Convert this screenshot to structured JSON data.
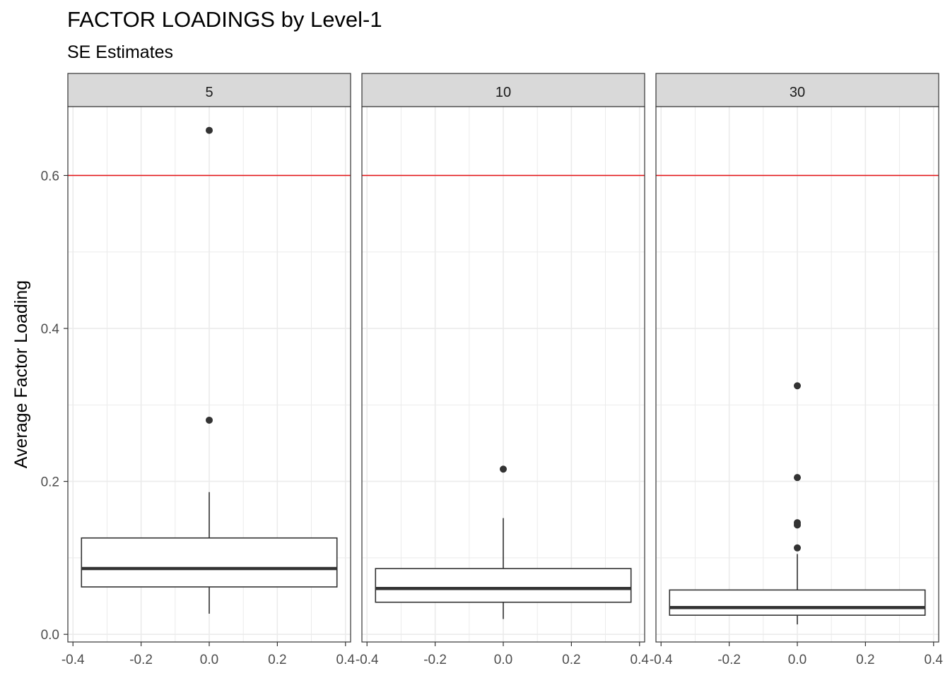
{
  "chart_data": {
    "type": "boxplot",
    "title": "FACTOR LOADINGS by Level-1",
    "subtitle": "SE Estimates",
    "ylabel": "Average Factor Loading",
    "xlabel": "",
    "ylim": [
      -0.01,
      0.69
    ],
    "yticks": [
      0.0,
      0.2,
      0.4,
      0.6
    ],
    "ytick_labels": [
      "0.0",
      "0.2",
      "0.4",
      "0.6"
    ],
    "xlim": [
      -0.4,
      0.4
    ],
    "xticks": [
      -0.4,
      -0.2,
      0.0,
      0.2,
      0.4
    ],
    "xtick_labels": [
      "-0.4",
      "-0.2",
      "0.0",
      "0.2",
      "0.4"
    ],
    "reference_line": {
      "y": 0.6,
      "color": "#e41a1c"
    },
    "grid": true,
    "theme": "bw",
    "colors": {
      "box_line": "#333333",
      "outlier": "#333333",
      "strip_fill": "#d9d9d9",
      "grid": "#ebebeb",
      "panel_border": "#333333"
    },
    "panels": [
      {
        "label": "5",
        "box": {
          "whisker_low": 0.027,
          "q1": 0.062,
          "median": 0.086,
          "q3": 0.126,
          "whisker_high": 0.186
        },
        "outliers": [
          0.28,
          0.659
        ]
      },
      {
        "label": "10",
        "box": {
          "whisker_low": 0.02,
          "q1": 0.042,
          "median": 0.06,
          "q3": 0.086,
          "whisker_high": 0.152
        },
        "outliers": [
          0.216
        ]
      },
      {
        "label": "30",
        "box": {
          "whisker_low": 0.013,
          "q1": 0.025,
          "median": 0.035,
          "q3": 0.058,
          "whisker_high": 0.105
        },
        "outliers": [
          0.113,
          0.143,
          0.146,
          0.205,
          0.325
        ]
      }
    ]
  }
}
